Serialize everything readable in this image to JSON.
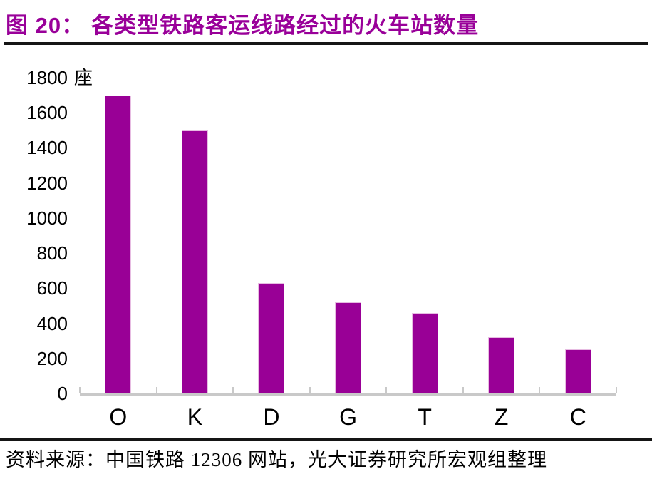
{
  "header": {
    "figure_label": "图 20：",
    "title": "各类型铁路客运线路经过的火车站数量"
  },
  "chart_data": {
    "type": "bar",
    "title": "各类型铁路客运线路经过的火车站数量",
    "categories": [
      "O",
      "K",
      "D",
      "G",
      "T",
      "Z",
      "C"
    ],
    "values": [
      1700,
      1500,
      630,
      520,
      460,
      320,
      250
    ],
    "unit_label": "座",
    "xlabel": "",
    "ylabel": "座",
    "ylim": [
      0,
      1800
    ],
    "yticks": [
      1800,
      1600,
      1400,
      1200,
      1000,
      800,
      600,
      400,
      200,
      0
    ],
    "grid": false,
    "legend": "none",
    "bar_color": "#990096"
  },
  "footer": {
    "source": "资料来源：中国铁路 12306 网站，光大证券研究所宏观组整理"
  },
  "colors": {
    "accent_purple": "#990099",
    "bar_fill": "#990096",
    "bar_edge": "#e7bce2",
    "axis_gray": "#c9c9c9",
    "divider_black": "#151515",
    "text_black": "#000000"
  }
}
